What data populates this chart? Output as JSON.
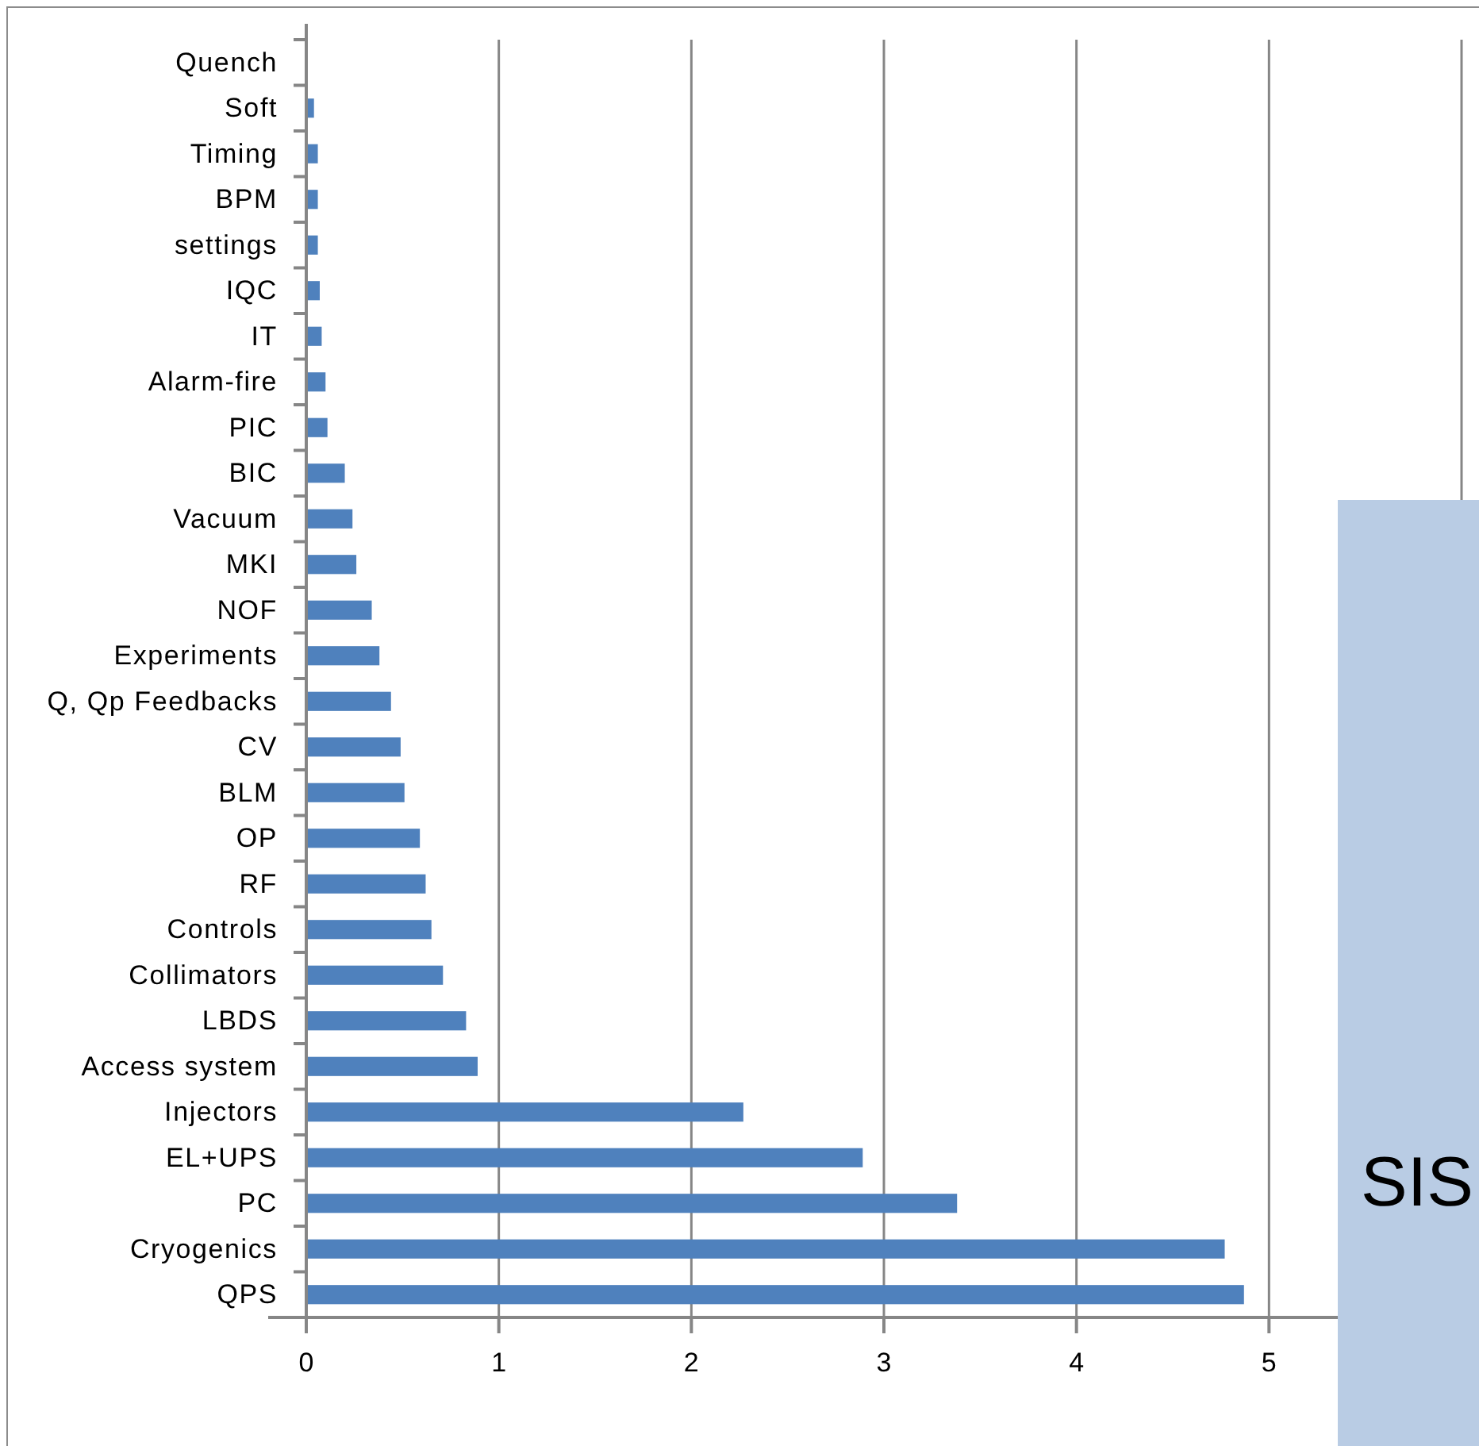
{
  "chart_data": {
    "type": "bar",
    "orientation": "horizontal",
    "categories": [
      "Quench",
      "Soft",
      "Timing",
      "BPM",
      "settings",
      "IQC",
      "IT",
      "Alarm-fire",
      "PIC",
      "BIC",
      "Vacuum",
      "MKI",
      "NOF",
      "Experiments",
      "Q, Qp Feedbacks",
      "CV",
      "BLM",
      "OP",
      "RF",
      "Controls",
      "Collimators",
      "LBDS",
      "Access system",
      "Injectors",
      "EL+UPS",
      "PC",
      "Cryogenics",
      "QPS"
    ],
    "values": [
      0,
      0.04,
      0.06,
      0.06,
      0.06,
      0.07,
      0.08,
      0.1,
      0.11,
      0.2,
      0.24,
      0.26,
      0.34,
      0.38,
      0.44,
      0.49,
      0.51,
      0.59,
      0.62,
      0.65,
      0.71,
      0.83,
      0.89,
      2.27,
      2.89,
      3.38,
      4.77,
      4.87
    ],
    "color": "#4f81bd",
    "xlim": [
      0,
      6
    ],
    "xticks": [
      0,
      1,
      2,
      3,
      4,
      5,
      {
        "value": 6,
        "label": null
      }
    ],
    "grid": "x",
    "annotations": [
      "SIS"
    ]
  }
}
